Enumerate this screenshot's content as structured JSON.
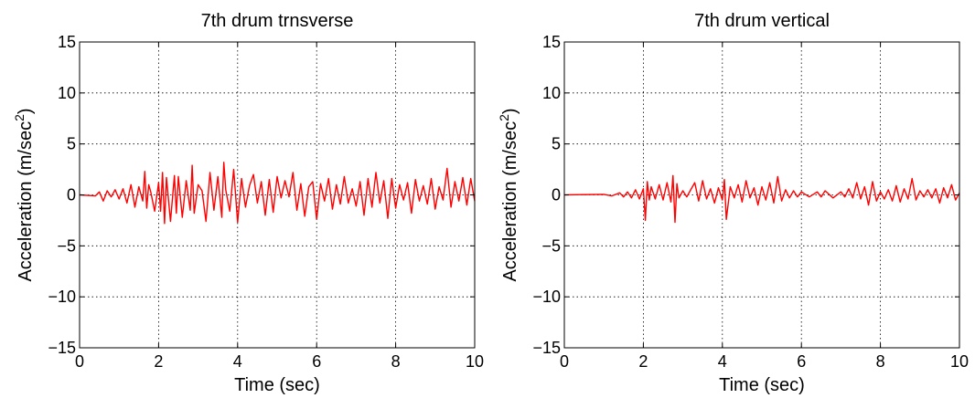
{
  "chart_data": [
    {
      "type": "line",
      "title": "7th drum trnsverse",
      "xlabel": "Time (sec)",
      "ylabel": "Acceleration (m/sec",
      "ylabel_superscript": "2",
      "ylabel_suffix": ")",
      "xlim": [
        0,
        10
      ],
      "ylim": [
        -15,
        15
      ],
      "xticks": [
        0,
        2,
        4,
        6,
        8,
        10
      ],
      "yticks": [
        -15,
        -10,
        -5,
        0,
        5,
        10,
        15
      ],
      "grid": true,
      "color": "#ff0000",
      "series": [
        {
          "x": [
            0,
            0.4,
            0.5,
            0.6,
            0.7,
            0.8,
            0.9,
            1.0,
            1.1,
            1.2,
            1.3,
            1.4,
            1.5,
            1.6,
            1.65,
            1.7,
            1.75,
            1.8,
            1.9,
            2.0,
            2.05,
            2.1,
            2.15,
            2.2,
            2.3,
            2.4,
            2.45,
            2.5,
            2.6,
            2.7,
            2.8,
            2.85,
            2.9,
            3.0,
            3.1,
            3.2,
            3.3,
            3.4,
            3.5,
            3.6,
            3.65,
            3.7,
            3.8,
            3.9,
            4.0,
            4.1,
            4.2,
            4.3,
            4.4,
            4.5,
            4.6,
            4.7,
            4.8,
            4.9,
            5.0,
            5.1,
            5.2,
            5.3,
            5.4,
            5.5,
            5.6,
            5.7,
            5.8,
            5.9,
            6.0,
            6.1,
            6.2,
            6.3,
            6.4,
            6.5,
            6.6,
            6.7,
            6.8,
            6.9,
            7.0,
            7.1,
            7.2,
            7.3,
            7.4,
            7.5,
            7.6,
            7.7,
            7.8,
            7.9,
            8.0,
            8.1,
            8.2,
            8.3,
            8.4,
            8.5,
            8.6,
            8.7,
            8.8,
            8.9,
            9.0,
            9.1,
            9.2,
            9.3,
            9.4,
            9.5,
            9.6,
            9.7,
            9.8,
            9.9,
            10.0
          ],
          "y": [
            0,
            -0.1,
            0.3,
            -0.6,
            0.4,
            -0.2,
            0.5,
            -0.4,
            0.6,
            -0.8,
            1.0,
            -1.2,
            0.8,
            -0.6,
            2.3,
            -1.3,
            1.0,
            0.3,
            -1.6,
            1.2,
            -1.6,
            2.2,
            -2.8,
            1.7,
            -2.6,
            1.9,
            -1.8,
            1.8,
            -2.2,
            1.4,
            -1.5,
            2.9,
            -1.8,
            1.0,
            0.4,
            -2.6,
            2.2,
            -1.5,
            1.8,
            -2.2,
            3.2,
            0.5,
            -1.6,
            2.5,
            -2.7,
            1.6,
            -1.2,
            0.9,
            2.0,
            -0.8,
            1.3,
            -2.0,
            1.5,
            -1.7,
            1.8,
            -0.3,
            1.4,
            -0.2,
            2.2,
            -1.5,
            1.1,
            -2.1,
            0.8,
            1.3,
            -2.4,
            1.1,
            -0.6,
            1.6,
            -1.4,
            1.0,
            -0.9,
            1.8,
            -0.8,
            0.6,
            -1.1,
            1.3,
            -2.0,
            1.6,
            -1.2,
            2.2,
            -0.8,
            1.4,
            -2.3,
            1.6,
            -1.3,
            1.0,
            -0.5,
            1.2,
            -1.8,
            1.5,
            -0.6,
            0.9,
            -0.9,
            1.6,
            -1.4,
            0.8,
            -0.5,
            2.6,
            -1.2,
            1.3,
            -0.6,
            1.7,
            -1.0,
            1.6,
            -0.6
          ]
        }
      ]
    },
    {
      "type": "line",
      "title": "7th drum vertical",
      "xlabel": "Time (sec)",
      "ylabel": "Acceleration (m/sec",
      "ylabel_superscript": "2",
      "ylabel_suffix": ")",
      "xlim": [
        0,
        10
      ],
      "ylim": [
        -15,
        15
      ],
      "xticks": [
        0,
        2,
        4,
        6,
        8,
        10
      ],
      "yticks": [
        -15,
        -10,
        -5,
        0,
        5,
        10,
        15
      ],
      "grid": true,
      "color": "#ff0000",
      "series": [
        {
          "x": [
            0,
            1.0,
            1.2,
            1.4,
            1.5,
            1.6,
            1.7,
            1.8,
            1.9,
            2.0,
            2.05,
            2.1,
            2.15,
            2.2,
            2.3,
            2.4,
            2.5,
            2.6,
            2.7,
            2.75,
            2.8,
            2.85,
            2.9,
            3.0,
            3.1,
            3.2,
            3.3,
            3.4,
            3.5,
            3.6,
            3.7,
            3.8,
            3.9,
            4.0,
            4.05,
            4.1,
            4.2,
            4.3,
            4.4,
            4.5,
            4.6,
            4.7,
            4.8,
            4.9,
            5.0,
            5.1,
            5.2,
            5.3,
            5.4,
            5.5,
            5.6,
            5.7,
            5.8,
            5.9,
            6.0,
            6.2,
            6.4,
            6.5,
            6.6,
            6.8,
            7.0,
            7.1,
            7.2,
            7.3,
            7.4,
            7.5,
            7.6,
            7.7,
            7.8,
            7.9,
            8.0,
            8.1,
            8.2,
            8.3,
            8.4,
            8.5,
            8.6,
            8.7,
            8.8,
            8.9,
            9.0,
            9.1,
            9.2,
            9.3,
            9.4,
            9.5,
            9.6,
            9.7,
            9.8,
            9.9,
            10.0
          ],
          "y": [
            0,
            0.05,
            -0.1,
            0.2,
            -0.2,
            0.3,
            -0.3,
            0.5,
            -0.4,
            0.6,
            -2.5,
            1.3,
            -0.5,
            0.8,
            -0.4,
            1.0,
            -0.5,
            1.2,
            -0.7,
            1.9,
            -2.7,
            1.1,
            -0.3,
            0.4,
            -0.2,
            0.5,
            1.2,
            -0.6,
            1.4,
            -0.4,
            0.6,
            -0.8,
            0.7,
            -0.5,
            1.5,
            -2.4,
            0.8,
            -0.3,
            1.0,
            -0.7,
            1.4,
            -0.3,
            0.7,
            -1.0,
            0.8,
            -0.5,
            1.2,
            -0.8,
            1.8,
            -0.6,
            0.5,
            -0.3,
            0.4,
            -0.2,
            0.3,
            -0.2,
            0.3,
            -0.2,
            0.4,
            -0.3,
            0.3,
            -0.2,
            0.6,
            -0.3,
            1.2,
            -0.4,
            0.8,
            -1.0,
            1.3,
            -0.6,
            0.3,
            -0.4,
            0.5,
            -0.6,
            0.9,
            -0.7,
            0.6,
            -0.4,
            1.6,
            -0.5,
            0.4,
            -0.2,
            0.5,
            -0.3,
            0.6,
            -0.8,
            0.7,
            -0.3,
            1.0,
            -0.5,
            0.2
          ]
        }
      ]
    }
  ]
}
